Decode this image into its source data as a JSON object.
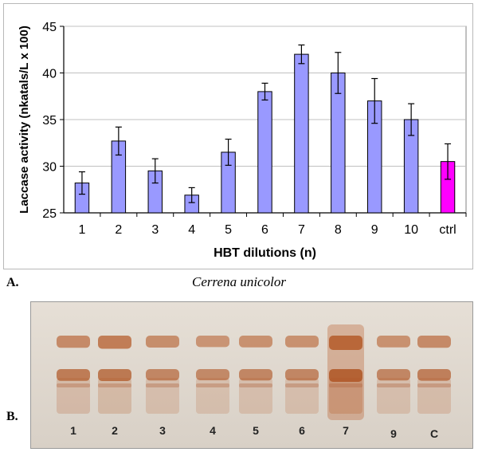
{
  "chart_data": {
    "type": "bar",
    "categories": [
      "1",
      "2",
      "3",
      "4",
      "5",
      "6",
      "7",
      "8",
      "9",
      "10",
      "ctrl"
    ],
    "values": [
      28.2,
      32.7,
      29.5,
      26.9,
      31.5,
      38.0,
      42.0,
      40.0,
      37.0,
      35.0,
      30.5
    ],
    "errors": [
      1.2,
      1.5,
      1.3,
      0.8,
      1.4,
      0.9,
      1.0,
      2.2,
      2.4,
      1.7,
      1.9
    ],
    "bar_colors": [
      "#9999ff",
      "#9999ff",
      "#9999ff",
      "#9999ff",
      "#9999ff",
      "#9999ff",
      "#9999ff",
      "#9999ff",
      "#9999ff",
      "#9999ff",
      "#ff00ff"
    ],
    "xlabel": "HBT dilutions (n)",
    "ylabel": "Laccase activity (nkatals/L x 100)",
    "ylim": [
      25,
      45
    ],
    "yticks": [
      25,
      30,
      35,
      40,
      45
    ],
    "grid": true
  },
  "panel_a_label": "A.",
  "panel_b_label": "B.",
  "species": "Cerrena unicolor",
  "gel": {
    "lanes": [
      "1",
      "2",
      "3",
      "4",
      "5",
      "6",
      "7",
      "9",
      "C"
    ],
    "upper_band_intensity": [
      0.55,
      0.75,
      0.5,
      0.4,
      0.45,
      0.45,
      1.0,
      0.45,
      0.55
    ],
    "lower_band_intensity": [
      0.7,
      0.75,
      0.55,
      0.5,
      0.55,
      0.55,
      1.0,
      0.55,
      0.65
    ]
  }
}
